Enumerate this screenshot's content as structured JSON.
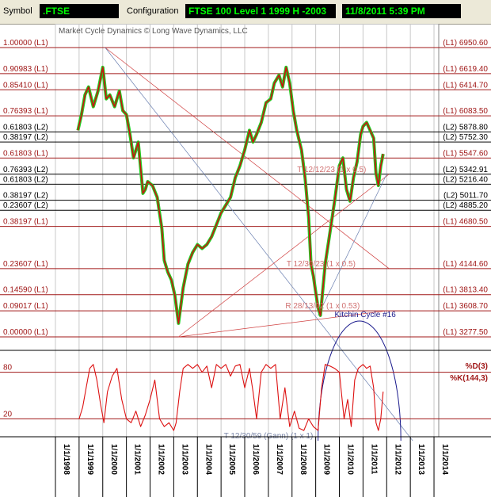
{
  "header": {
    "symbol_label": "Symbol",
    "symbol_value": ".FTSE",
    "config_label": "Configuration",
    "config_value": "FTSE 100 Level 1 1999 H -2003",
    "datetime": "11/8/2011 5:39 PM"
  },
  "chart_data": {
    "type": "line",
    "title": "Market Cycle Dynamics © Long Wave Dynamics, LLC",
    "x_ticks": [
      "1/1/1998",
      "1/1/1999",
      "1/1/2000",
      "1/1/2001",
      "1/1/2002",
      "1/1/2003",
      "1/1/2004",
      "1/1/2005",
      "1/1/2006",
      "1/1/2007",
      "1/1/2008",
      "1/1/2009",
      "1/1/2010",
      "1/1/2011",
      "1/1/2012",
      "1/1/2013",
      "1/1/2014"
    ],
    "x_range": [
      1998.0,
      2014.2
    ],
    "y_range": [
      3277.5,
      6950.6
    ],
    "price_levels": [
      {
        "left": "1.00000 (L1)",
        "right": "(L1) 6950.60",
        "value": 6950.6,
        "group": "L1"
      },
      {
        "left": "0.90983 (L1)",
        "right": "(L1) 6619.40",
        "value": 6619.4,
        "group": "L1"
      },
      {
        "left": "0.85410 (L1)",
        "right": "(L1) 6414.70",
        "value": 6414.7,
        "group": "L1"
      },
      {
        "left": "0.76393 (L1)",
        "right": "(L1) 6083.50",
        "value": 6083.5,
        "group": "L1"
      },
      {
        "left": "0.61803 (L2)",
        "right": "(L2) 5878.80",
        "value": 5878.8,
        "group": "L2"
      },
      {
        "left": "0.38197 (L2)",
        "right": "(L2) 5752.30",
        "value": 5752.3,
        "group": "L2"
      },
      {
        "left": "0.61803 (L1)",
        "right": "(L1) 5547.60",
        "value": 5547.6,
        "group": "L1"
      },
      {
        "left": "0.76393 (L2)",
        "right": "(L2) 5342.91",
        "value": 5342.91,
        "group": "L2"
      },
      {
        "left": "0.61803 (L2)",
        "right": "(L2) 5216.40",
        "value": 5216.4,
        "group": "L2"
      },
      {
        "left": "0.38197 (L2)",
        "right": "(L2) 5011.70",
        "value": 5011.7,
        "group": "L2"
      },
      {
        "left": "0.23607 (L2)",
        "right": "(L2) 4885.20",
        "value": 4885.2,
        "group": "L2"
      },
      {
        "left": "0.38197 (L1)",
        "right": "(L1) 4680.50",
        "value": 4680.5,
        "group": "L1"
      },
      {
        "left": "0.23607 (L1)",
        "right": "(L1) 4144.60",
        "value": 4144.6,
        "group": "L1"
      },
      {
        "left": "0.14590 (L1)",
        "right": "(L1) 3813.40",
        "value": 3813.4,
        "group": "L1"
      },
      {
        "left": "0.09017 (L1)",
        "right": "(L1) 3608.70",
        "value": 3608.7,
        "group": "L1"
      },
      {
        "left": "0.00000 (L1)",
        "right": "(L1) 3277.50",
        "value": 3277.5,
        "group": "L1"
      }
    ],
    "price_series": {
      "x": [
        1998.95,
        1999.1,
        1999.25,
        1999.4,
        1999.6,
        1999.8,
        2000.0,
        2000.15,
        2000.3,
        2000.5,
        2000.7,
        2000.85,
        2001.0,
        2001.15,
        2001.3,
        2001.5,
        2001.7,
        2001.8,
        2001.9,
        2002.1,
        2002.3,
        2002.5,
        2002.6,
        2002.75,
        2002.9,
        2003.05,
        2003.2,
        2003.4,
        2003.6,
        2003.8,
        2004.0,
        2004.2,
        2004.4,
        2004.6,
        2004.8,
        2005.0,
        2005.2,
        2005.4,
        2005.6,
        2005.8,
        2006.0,
        2006.2,
        2006.35,
        2006.5,
        2006.7,
        2006.9,
        2007.1,
        2007.25,
        2007.45,
        2007.6,
        2007.75,
        2007.9,
        2008.05,
        2008.2,
        2008.4,
        2008.55,
        2008.7,
        2008.8,
        2008.9,
        2009.0,
        2009.1,
        2009.2,
        2009.4,
        2009.6,
        2009.8,
        2010.0,
        2010.15,
        2010.3,
        2010.45,
        2010.6,
        2010.75,
        2010.9,
        2011.0,
        2011.15,
        2011.3,
        2011.45,
        2011.55,
        2011.65,
        2011.75,
        2011.85
      ],
      "values": [
        5900,
        6100,
        6350,
        6450,
        6200,
        6400,
        6700,
        6300,
        6350,
        6200,
        6400,
        6150,
        6100,
        5850,
        5550,
        5750,
        5100,
        5150,
        5250,
        5200,
        5050,
        4650,
        4250,
        4100,
        4000,
        3800,
        3450,
        3900,
        4200,
        4350,
        4450,
        4400,
        4450,
        4550,
        4700,
        4850,
        4950,
        5050,
        5300,
        5450,
        5650,
        5900,
        5750,
        5850,
        6000,
        6250,
        6300,
        6500,
        6600,
        6450,
        6700,
        6500,
        6150,
        5900,
        5650,
        5300,
        4800,
        4200,
        4050,
        3850,
        3650,
        3550,
        4200,
        4600,
        5000,
        5450,
        5550,
        5150,
        5000,
        5300,
        5500,
        5850,
        5950,
        6000,
        5900,
        5800,
        5350,
        5200,
        5450,
        5600
      ]
    },
    "indicator": {
      "levels": [
        {
          "label": "80",
          "value": 80
        },
        {
          "label": "20",
          "value": 20
        }
      ],
      "d_label": "%D(3)",
      "k_label": "%K(144,3)",
      "y_range": [
        0,
        100
      ],
      "k_series": {
        "x": [
          1999.0,
          1999.15,
          1999.3,
          1999.45,
          1999.6,
          1999.75,
          1999.9,
          2000.05,
          2000.2,
          2000.4,
          2000.6,
          2000.8,
          2001.0,
          2001.2,
          2001.4,
          2001.6,
          2001.8,
          2002.0,
          2002.2,
          2002.4,
          2002.6,
          2002.8,
          2003.0,
          2003.1,
          2003.25,
          2003.4,
          2003.6,
          2003.8,
          2004.0,
          2004.2,
          2004.4,
          2004.6,
          2004.8,
          2005.0,
          2005.2,
          2005.4,
          2005.6,
          2005.8,
          2006.0,
          2006.2,
          2006.35,
          2006.5,
          2006.7,
          2006.9,
          2007.1,
          2007.3,
          2007.5,
          2007.7,
          2007.9,
          2008.1,
          2008.3,
          2008.5,
          2008.7,
          2008.9,
          2009.1,
          2009.25,
          2009.4,
          2009.6,
          2009.8,
          2010.0,
          2010.2,
          2010.35,
          2010.5,
          2010.65,
          2010.8,
          2011.0,
          2011.15,
          2011.3,
          2011.45,
          2011.55,
          2011.65,
          2011.75,
          2011.85
        ],
        "values": [
          20,
          35,
          60,
          85,
          90,
          70,
          40,
          15,
          55,
          75,
          85,
          45,
          20,
          15,
          30,
          10,
          25,
          45,
          70,
          20,
          10,
          15,
          5,
          15,
          55,
          85,
          90,
          85,
          90,
          80,
          88,
          60,
          90,
          85,
          90,
          75,
          88,
          90,
          60,
          85,
          55,
          20,
          80,
          90,
          85,
          90,
          20,
          60,
          10,
          30,
          8,
          5,
          20,
          10,
          5,
          60,
          90,
          88,
          85,
          80,
          20,
          45,
          10,
          70,
          85,
          90,
          85,
          88,
          60,
          15,
          5,
          20,
          55
        ]
      }
    },
    "annotations": [
      {
        "text": "T 12/12/23 (1 x 0.5)",
        "x": 2011.9,
        "y": 5342
      },
      {
        "text": "T 12/30/23 (1 x 0.5)",
        "x": 2011.45,
        "y": 4144
      },
      {
        "text": "R 28/13/02 (1 x 0.53)",
        "x": 2011.4,
        "y": 3608
      },
      {
        "text": "Kitchin Cycle #16",
        "x": 2009.8,
        "y": 3500
      },
      {
        "text": "T 12/30/59 (Gann) (1 x 1)",
        "x": 2008.8,
        "y": -5
      }
    ]
  }
}
